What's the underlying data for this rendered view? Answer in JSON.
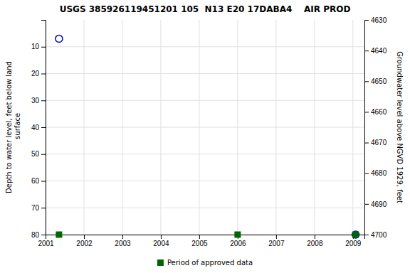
{
  "chart_data": {
    "type": "scatter",
    "title": "USGS 385926119451201 105  N13 E20 17DABA4    AIR PROD",
    "ylabel": "Depth to water level, feet below land\n surface",
    "y2label": "Groundwater level above NGVD 1929, feet",
    "xlim": [
      2001.0,
      2009.3
    ],
    "xticks": [
      2001,
      2002,
      2003,
      2004,
      2005,
      2006,
      2007,
      2008,
      2009
    ],
    "ylim": [
      80,
      0
    ],
    "yticks": [
      10,
      20,
      30,
      40,
      50,
      60,
      70,
      80
    ],
    "y2lim": [
      4700,
      4630
    ],
    "y2ticks": [
      4700,
      4690,
      4680,
      4670,
      4660,
      4650,
      4640,
      4630
    ],
    "grid": true,
    "series": [
      {
        "color": "#0000cc",
        "marker": "circle",
        "x": [
          2001.35,
          2009.07
        ],
        "values": [
          7,
          80
        ]
      },
      {
        "name": "Period of approved data",
        "color": "#006600",
        "marker": "square",
        "x": [
          2001.35,
          2006.0,
          2009.07
        ],
        "values": [
          80,
          80,
          80
        ]
      }
    ]
  }
}
